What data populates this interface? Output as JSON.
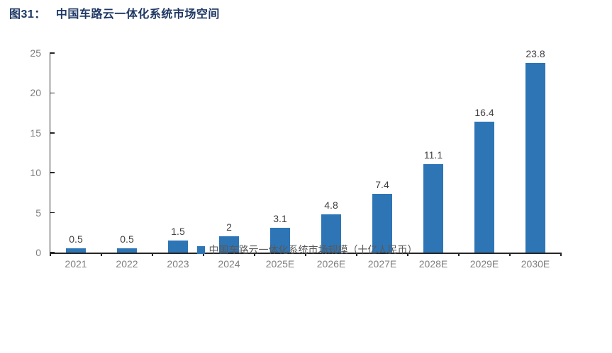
{
  "title": {
    "prefix": "图31：",
    "text": "中国车路云一体化系统市场空间"
  },
  "chart_data": {
    "type": "bar",
    "title": "图31：中国车路云一体化系统市场空间",
    "categories": [
      "2021",
      "2022",
      "2023",
      "2024",
      "2025E",
      "2026E",
      "2027E",
      "2028E",
      "2029E",
      "2030E"
    ],
    "values": [
      0.5,
      0.5,
      1.5,
      2,
      3.1,
      4.8,
      7.4,
      11.1,
      16.4,
      23.8
    ],
    "value_labels": [
      "0.5",
      "0.5",
      "1.5",
      "2",
      "3.1",
      "4.8",
      "7.4",
      "11.1",
      "16.4",
      "23.8"
    ],
    "xlabel": "",
    "ylabel": "",
    "ylim": [
      0,
      25
    ],
    "yticks": [
      0,
      5,
      10,
      15,
      20,
      25
    ],
    "grid": false,
    "legend": [
      "中国车路云一体化系统市场规模（十亿人民币）"
    ],
    "legend_position": "bottom-center",
    "bar_color": "#2E75B6"
  },
  "colors": {
    "title_text": "#1F3864",
    "bar": "#2E75B6",
    "axis_line": "#262626",
    "axis_label": "#7F7F7F",
    "data_label": "#404040",
    "legend_text": "#595959",
    "background": "#FFFFFF"
  }
}
